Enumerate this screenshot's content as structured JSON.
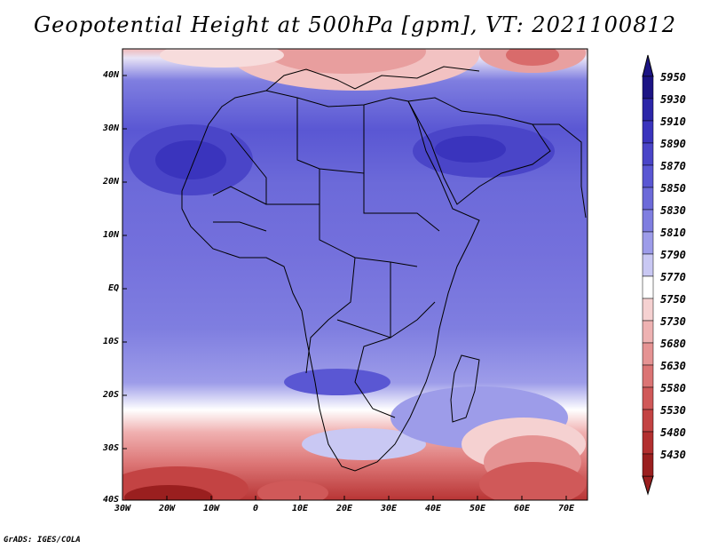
{
  "title": "Geopotential Height at 500hPa [gpm], VT: 2021100812",
  "footer": "GrADS: IGES/COLA",
  "lat_labels": [
    "40N",
    "30N",
    "20N",
    "10N",
    "EQ",
    "10S",
    "20S",
    "30S",
    "40S"
  ],
  "lon_labels": [
    "30W",
    "20W",
    "10W",
    "0",
    "10E",
    "20E",
    "30E",
    "40E",
    "50E",
    "60E",
    "70E"
  ],
  "colorbar": {
    "levels": [
      "5950",
      "5930",
      "5910",
      "5890",
      "5870",
      "5850",
      "5830",
      "5810",
      "5790",
      "5770",
      "5750",
      "5730",
      "5680",
      "5630",
      "5580",
      "5530",
      "5480",
      "5430"
    ],
    "colors": [
      "#1c1484",
      "#2c26a8",
      "#3a34bd",
      "#4a45c8",
      "#5a57d3",
      "#6c6ad9",
      "#7f7ee0",
      "#9d9ce9",
      "#c9c8f3",
      "#ffffff",
      "#f5d1d1",
      "#eeb2b2",
      "#e59393",
      "#db7474",
      "#d05959",
      "#c34343",
      "#b22f2f",
      "#9a1f1f"
    ]
  }
}
